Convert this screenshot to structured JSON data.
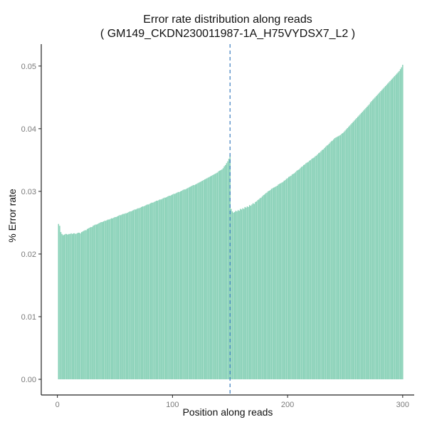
{
  "chart_data": {
    "type": "bar",
    "title_line1": "Error rate distribution along reads",
    "title_line2": "( GM149_CKDN230011987-1A_H75VYDSX7_L2 )",
    "xlabel": "Position along reads",
    "ylabel": "% Error rate",
    "xlim": [
      -14,
      310
    ],
    "ylim": [
      -0.0025,
      0.0535
    ],
    "x_ticks": [
      0,
      100,
      200,
      300
    ],
    "x_tick_labels": [
      "0",
      "100",
      "200",
      "300"
    ],
    "y_ticks": [
      0,
      0.01,
      0.02,
      0.03,
      0.04,
      0.05
    ],
    "y_tick_labels": [
      "0.00",
      "0.01",
      "0.02",
      "0.03",
      "0.04",
      "0.05"
    ],
    "grid": false,
    "bar_color": "#88d1b7",
    "vline_color": "#3b7dbf",
    "vline_x": 150,
    "series": [
      {
        "x_start": 1,
        "values": [
          0.0248,
          0.0245,
          0.0235,
          0.0232,
          0.023,
          0.0231,
          0.0232,
          0.0232,
          0.0231,
          0.0232,
          0.0232,
          0.0233,
          0.0232,
          0.0233,
          0.0233,
          0.0232,
          0.0233,
          0.0234,
          0.0234,
          0.0233,
          0.0235,
          0.0236,
          0.0237,
          0.0238,
          0.0238,
          0.024,
          0.0241,
          0.0242,
          0.0243,
          0.0243,
          0.0245,
          0.0246,
          0.0247,
          0.0247,
          0.0248,
          0.0249,
          0.025,
          0.0251,
          0.0251,
          0.0252,
          0.0253,
          0.0253,
          0.0254,
          0.0255,
          0.0255,
          0.0256,
          0.0257,
          0.0257,
          0.0258,
          0.0259,
          0.0259,
          0.026,
          0.0261,
          0.0262,
          0.0262,
          0.0263,
          0.0264,
          0.0264,
          0.0265,
          0.0265,
          0.0266,
          0.0267,
          0.0268,
          0.0268,
          0.0269,
          0.027,
          0.0271,
          0.0271,
          0.0272,
          0.0273,
          0.0273,
          0.0274,
          0.0275,
          0.0276,
          0.0276,
          0.0277,
          0.0278,
          0.0279,
          0.0279,
          0.028,
          0.0281,
          0.0282,
          0.0282,
          0.0283,
          0.0284,
          0.0285,
          0.0285,
          0.0286,
          0.0287,
          0.0287,
          0.0288,
          0.0289,
          0.029,
          0.029,
          0.0291,
          0.0292,
          0.0293,
          0.0293,
          0.0294,
          0.0295,
          0.0296,
          0.0296,
          0.0297,
          0.0298,
          0.0299,
          0.0299,
          0.03,
          0.0301,
          0.0302,
          0.0303,
          0.0303,
          0.0304,
          0.0305,
          0.0306,
          0.0307,
          0.0308,
          0.0309,
          0.031,
          0.031,
          0.0311,
          0.0312,
          0.0313,
          0.0314,
          0.0315,
          0.0316,
          0.0317,
          0.0318,
          0.0319,
          0.032,
          0.0321,
          0.0322,
          0.0323,
          0.0324,
          0.0325,
          0.0326,
          0.0327,
          0.0328,
          0.0329,
          0.033,
          0.0332,
          0.0333,
          0.0334,
          0.0335,
          0.0337,
          0.034,
          0.0342,
          0.0345,
          0.0348,
          0.0352,
          0.0357,
          0.0272,
          0.0268,
          0.0266,
          0.0267,
          0.0269,
          0.0268,
          0.027,
          0.0269,
          0.0272,
          0.0271,
          0.0273,
          0.0272,
          0.0275,
          0.0274,
          0.0276,
          0.0275,
          0.0278,
          0.0277,
          0.0279,
          0.0281,
          0.028,
          0.0283,
          0.0284,
          0.0286,
          0.0287,
          0.0289,
          0.029,
          0.0292,
          0.0294,
          0.0295,
          0.0297,
          0.0298,
          0.03,
          0.0301,
          0.0302,
          0.0304,
          0.0305,
          0.0306,
          0.0307,
          0.0308,
          0.0309,
          0.0311,
          0.0312,
          0.0313,
          0.0314,
          0.0315,
          0.0317,
          0.0318,
          0.032,
          0.0321,
          0.0323,
          0.0324,
          0.0325,
          0.0327,
          0.0328,
          0.0329,
          0.0331,
          0.0333,
          0.0334,
          0.0335,
          0.0337,
          0.0339,
          0.034,
          0.0342,
          0.0343,
          0.0345,
          0.0346,
          0.0347,
          0.0349,
          0.035,
          0.0352,
          0.0353,
          0.0354,
          0.0356,
          0.0357,
          0.0359,
          0.0361,
          0.0362,
          0.0364,
          0.0366,
          0.0367,
          0.0369,
          0.0371,
          0.0373,
          0.0374,
          0.0376,
          0.0378,
          0.038,
          0.0381,
          0.0383,
          0.0385,
          0.0386,
          0.0387,
          0.0388,
          0.0389,
          0.039,
          0.0392,
          0.0393,
          0.0395,
          0.0397,
          0.0399,
          0.0401,
          0.0403,
          0.0405,
          0.0407,
          0.0409,
          0.0411,
          0.0413,
          0.0415,
          0.0417,
          0.0419,
          0.0421,
          0.0423,
          0.0425,
          0.0427,
          0.0429,
          0.0431,
          0.0433,
          0.0435,
          0.0437,
          0.0439,
          0.0442,
          0.0444,
          0.0446,
          0.0448,
          0.045,
          0.0452,
          0.0454,
          0.0456,
          0.0458,
          0.046,
          0.0462,
          0.0464,
          0.0466,
          0.0468,
          0.047,
          0.0472,
          0.0474,
          0.0476,
          0.0478,
          0.048,
          0.0482,
          0.0484,
          0.0486,
          0.0488,
          0.049,
          0.0492,
          0.0495,
          0.0498,
          0.0502
        ]
      }
    ]
  }
}
